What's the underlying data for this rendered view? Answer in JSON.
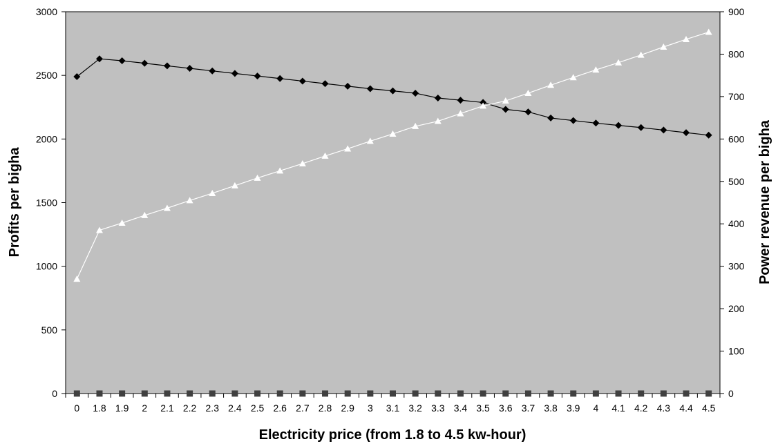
{
  "chart_data": {
    "type": "line",
    "title": "",
    "xlabel": "Electricity price (from 1.8 to 4.5 kw-hour)",
    "ylabel_left": "Profits per bigha",
    "ylabel_right": "Power revenue per bigha",
    "ylim_left": [
      0,
      3000
    ],
    "ylim_right": [
      0,
      900
    ],
    "yticks_left": [
      "0",
      "500",
      "1000",
      "1500",
      "2000",
      "2500",
      "3000"
    ],
    "yticks_right": [
      "0",
      "100",
      "200",
      "300",
      "400",
      "500",
      "600",
      "700",
      "800",
      "900"
    ],
    "grid": false,
    "legend": "none",
    "plot_background": "#c0c0c0",
    "categories": [
      "0",
      "1.8",
      "1.9",
      "2",
      "2.1",
      "2.2",
      "2.3",
      "2.4",
      "2.5",
      "2.6",
      "2.7",
      "2.8",
      "2.9",
      "3",
      "3.1",
      "3.2",
      "3.3",
      "3.4",
      "3.5",
      "3.6",
      "3.7",
      "3.8",
      "3.9",
      "4",
      "4.1",
      "4.2",
      "4.3",
      "4.4",
      "4.5"
    ],
    "series": [
      {
        "axis": "left",
        "marker": "diamond",
        "color": "#000000",
        "values": [
          2490,
          2630,
          2615,
          2595,
          2575,
          2555,
          2535,
          2515,
          2495,
          2475,
          2455,
          2435,
          2415,
          2395,
          2378,
          2360,
          2322,
          2305,
          2287,
          2233,
          2213,
          2165,
          2145,
          2125,
          2107,
          2090,
          2070,
          2050,
          2030
        ]
      },
      {
        "axis": "right",
        "marker": "triangle",
        "color": "#ffffff",
        "values": [
          270,
          385,
          402,
          420,
          437,
          455,
          472,
          490,
          508,
          525,
          542,
          560,
          577,
          595,
          612,
          630,
          642,
          660,
          678,
          690,
          708,
          727,
          745,
          763,
          780,
          798,
          817,
          835,
          852
        ]
      },
      {
        "axis": "right",
        "marker": "square",
        "color": "#404040",
        "values": [
          0,
          0,
          0,
          0,
          0,
          0,
          0,
          0,
          0,
          0,
          0,
          0,
          0,
          0,
          0,
          0,
          0,
          0,
          0,
          0,
          0,
          0,
          0,
          0,
          0,
          0,
          0,
          0,
          0
        ]
      }
    ]
  }
}
